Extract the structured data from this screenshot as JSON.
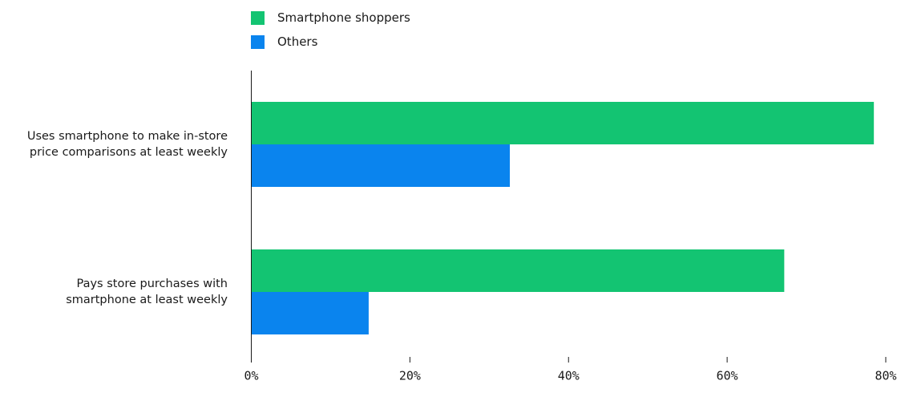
{
  "chart_data": {
    "type": "bar",
    "orientation": "horizontal",
    "categories": [
      [
        "Uses smartphone to make in-store",
        "price comparisons at least weekly"
      ],
      [
        "Pays store purchases with",
        "smartphone at least weekly"
      ]
    ],
    "series": [
      {
        "name": "Smartphone shoppers",
        "values": [
          78.5,
          67.2
        ],
        "color": "#13c472"
      },
      {
        "name": "Others",
        "values": [
          32.6,
          14.8
        ],
        "color": "#0a84ee"
      }
    ],
    "xlim": [
      0,
      80
    ],
    "xticks": [
      0,
      20,
      40,
      60,
      80
    ],
    "xtick_labels": [
      "0%",
      "20%",
      "40%",
      "60%",
      "80%"
    ],
    "legend_position": "top-left",
    "grid": false
  }
}
